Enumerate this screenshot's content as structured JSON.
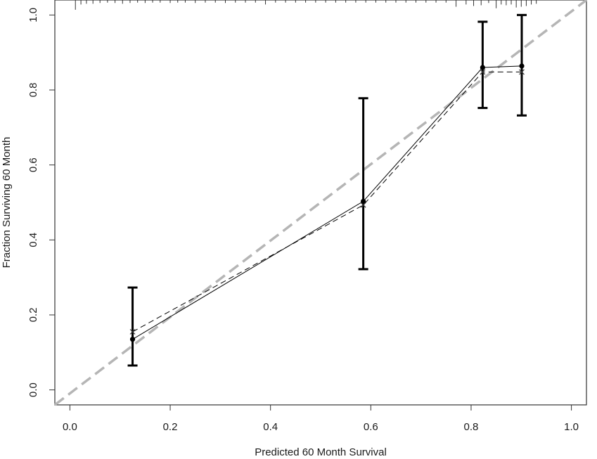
{
  "chart_data": {
    "type": "calibration-plot",
    "xlabel": "Predicted  60 Month Survival",
    "ylabel": "Fraction Surviving 60 Month",
    "xlim": [
      -0.03,
      1.03
    ],
    "ylim": [
      -0.04,
      1.04
    ],
    "x_ticks": [
      0.0,
      0.2,
      0.4,
      0.6,
      0.8,
      1.0
    ],
    "x_tick_labels": [
      "0.0",
      "0.2",
      "0.4",
      "0.6",
      "0.8",
      "1.0"
    ],
    "y_ticks": [
      0.0,
      0.2,
      0.4,
      0.6,
      0.8,
      1.0
    ],
    "y_tick_labels": [
      "0.0",
      "0.2",
      "0.4",
      "0.6",
      "0.8",
      "1.0"
    ],
    "grid": false,
    "legend": "none",
    "colors": {
      "observed": "#000000",
      "ideal_line": "#b5b5b5",
      "frame": "#333333"
    },
    "observed_points": [
      {
        "x": 0.125,
        "y": 0.135,
        "lower": 0.065,
        "upper": 0.273
      },
      {
        "x": 0.585,
        "y": 0.503,
        "lower": 0.322,
        "upper": 0.778
      },
      {
        "x": 0.823,
        "y": 0.86,
        "lower": 0.752,
        "upper": 0.982
      },
      {
        "x": 0.901,
        "y": 0.864,
        "lower": 0.732,
        "upper": 1.0
      }
    ],
    "bias_corrected_points": [
      {
        "x": 0.125,
        "y": 0.155
      },
      {
        "x": 0.585,
        "y": 0.493
      },
      {
        "x": 0.823,
        "y": 0.848
      },
      {
        "x": 0.901,
        "y": 0.848
      }
    ],
    "ideal_line": {
      "from": [
        -0.03,
        -0.04
      ],
      "to": [
        1.03,
        1.04
      ]
    },
    "rug_x": [
      0.011,
      0.022,
      0.033,
      0.046,
      0.06,
      0.075,
      0.09,
      0.105,
      0.12,
      0.135,
      0.15,
      0.165,
      0.18,
      0.2,
      0.215,
      0.23,
      0.25,
      0.27,
      0.29,
      0.31,
      0.33,
      0.35,
      0.37,
      0.39,
      0.41,
      0.43,
      0.45,
      0.47,
      0.49,
      0.51,
      0.53,
      0.55,
      0.57,
      0.59,
      0.61,
      0.63,
      0.65,
      0.67,
      0.69,
      0.71,
      0.73,
      0.75,
      0.77,
      0.79,
      0.805,
      0.82,
      0.835,
      0.85,
      0.86,
      0.87,
      0.88,
      0.89,
      0.9,
      0.91,
      0.92,
      0.93
    ],
    "rug_h": [
      0.026,
      0.012,
      0.01,
      0.01,
      0.008,
      0.007,
      0.008,
      0.01,
      0.008,
      0.007,
      0.008,
      0.007,
      0.007,
      0.008,
      0.007,
      0.007,
      0.008,
      0.007,
      0.007,
      0.008,
      0.007,
      0.007,
      0.007,
      0.012,
      0.007,
      0.007,
      0.007,
      0.007,
      0.007,
      0.007,
      0.007,
      0.007,
      0.007,
      0.007,
      0.007,
      0.007,
      0.007,
      0.007,
      0.007,
      0.007,
      0.007,
      0.007,
      0.018,
      0.012,
      0.016,
      0.014,
      0.008,
      0.022,
      0.012,
      0.014,
      0.012,
      0.02,
      0.018,
      0.016,
      0.012,
      0.01
    ]
  }
}
